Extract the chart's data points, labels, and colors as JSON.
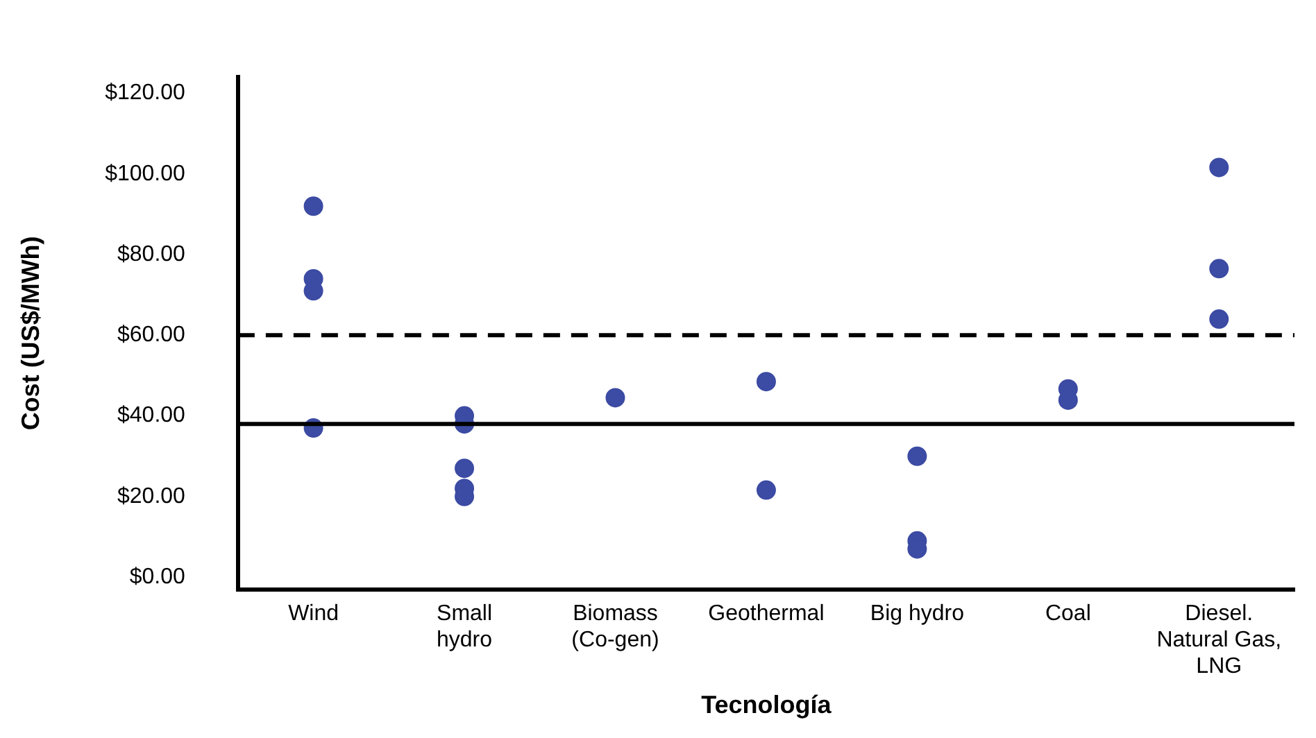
{
  "chart_data": {
    "type": "scatter",
    "xlabel": "Tecnología",
    "ylabel": "Cost (US$/MWh)",
    "categories": [
      "Wind",
      "Small\nhydro",
      "Biomass\n(Co-gen)",
      "Geothermal",
      "Big hydro",
      "Coal",
      "Diesel.\nNatural Gas,\nLNG"
    ],
    "series": [
      {
        "color": "#3c4ba3",
        "x": [
          "Wind",
          "Wind",
          "Wind",
          "Wind",
          "Small\nhydro",
          "Small\nhydro",
          "Small\nhydro",
          "Small\nhydro",
          "Small\nhydro",
          "Biomass\n(Co-gen)",
          "Geothermal",
          "Geothermal",
          "Big hydro",
          "Big hydro",
          "Big hydro",
          "Coal",
          "Coal",
          "Diesel.\nNatural Gas,\nLNG",
          "Diesel.\nNatural Gas,\nLNG",
          "Diesel.\nNatural Gas,\nLNG"
        ],
        "values": [
          92,
          74,
          71,
          37,
          40,
          38,
          27,
          22,
          20,
          44.5,
          48.5,
          21.6,
          30,
          9,
          7,
          46.7,
          43.9,
          101.6,
          76.5,
          64
        ]
      }
    ],
    "ylim": [
      -3,
      124
    ],
    "yticks": [
      {
        "value": 0,
        "label": "$0.00"
      },
      {
        "value": 20,
        "label": "$20.00"
      },
      {
        "value": 40,
        "label": "$40.00"
      },
      {
        "value": 60,
        "label": "$60.00"
      },
      {
        "value": 80,
        "label": "$80.00"
      },
      {
        "value": 100,
        "label": "$100.00"
      },
      {
        "value": 120,
        "label": "$120.00"
      }
    ],
    "ref_lines": [
      {
        "axis": "y",
        "value": 60,
        "color": "#000000",
        "line_style": "dashed"
      },
      {
        "axis": "y",
        "value": 38,
        "color": "#000000",
        "line_style": "solid"
      }
    ],
    "grid": false,
    "legend": false,
    "marker": "circle"
  }
}
